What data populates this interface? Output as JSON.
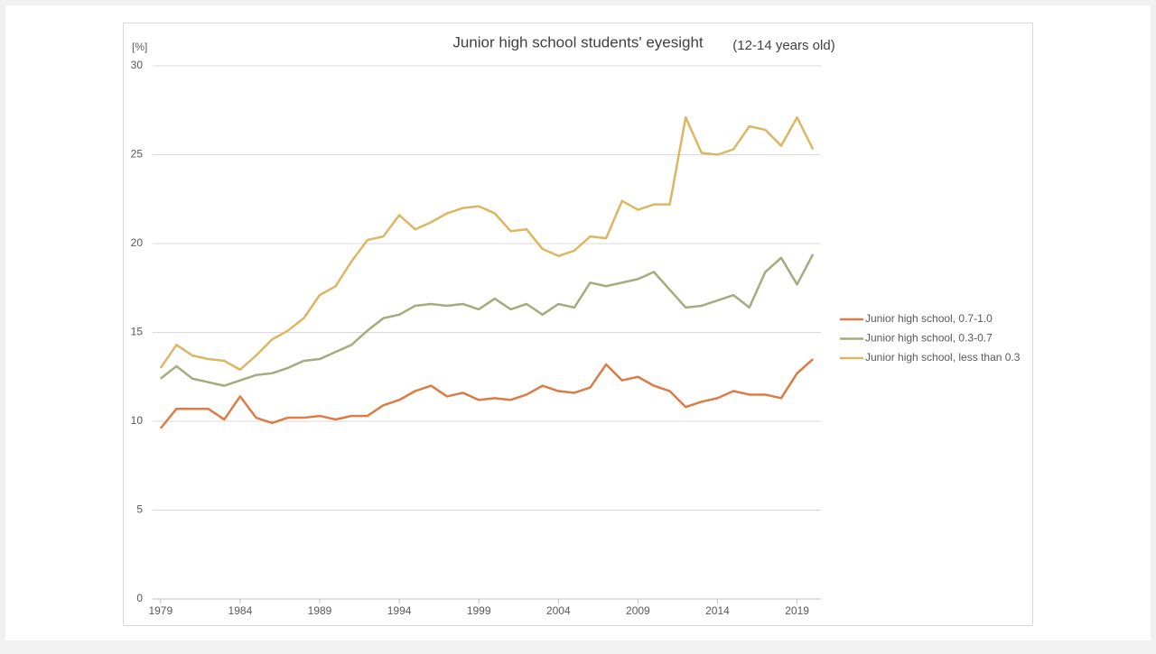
{
  "chart_data": {
    "type": "line",
    "title": "Junior high school students' eyesight",
    "subtitle": "(12-14 years old)",
    "y_label": "[%]",
    "x": [
      1979,
      1980,
      1981,
      1982,
      1983,
      1984,
      1985,
      1986,
      1987,
      1988,
      1989,
      1990,
      1991,
      1992,
      1993,
      1994,
      1995,
      1996,
      1997,
      1998,
      1999,
      2000,
      2001,
      2002,
      2003,
      2004,
      2005,
      2006,
      2007,
      2008,
      2009,
      2010,
      2011,
      2012,
      2013,
      2014,
      2015,
      2016,
      2017,
      2018,
      2019,
      2020
    ],
    "xlim": [
      1978.5,
      2020.5
    ],
    "xticks": [
      1979,
      1984,
      1989,
      1994,
      1999,
      2004,
      2009,
      2014,
      2019
    ],
    "ylim": [
      0,
      30
    ],
    "yticks": [
      0,
      5,
      10,
      15,
      20,
      25,
      30
    ],
    "grid": true,
    "legend": "right",
    "series": [
      {
        "name": "Junior high school, 0.7-1.0",
        "color": "#dd7b45",
        "values": [
          9.6,
          10.7,
          10.7,
          10.7,
          10.1,
          11.4,
          10.2,
          9.9,
          10.2,
          10.2,
          10.3,
          10.1,
          10.3,
          10.3,
          10.9,
          11.2,
          11.7,
          12.0,
          11.4,
          11.6,
          11.2,
          11.3,
          11.2,
          11.5,
          12.0,
          11.7,
          11.6,
          11.9,
          13.2,
          12.3,
          12.5,
          12.0,
          11.7,
          10.8,
          11.1,
          11.3,
          11.7,
          11.5,
          11.5,
          11.3,
          12.7,
          13.5
        ]
      },
      {
        "name": "Junior high school, 0.3-0.7",
        "color": "#a6aa7c",
        "values": [
          12.4,
          13.1,
          12.4,
          12.2,
          12.0,
          12.3,
          12.6,
          12.7,
          13.0,
          13.4,
          13.5,
          13.9,
          14.3,
          15.1,
          15.8,
          16.0,
          16.5,
          16.6,
          16.5,
          16.6,
          16.3,
          16.9,
          16.3,
          16.6,
          16.0,
          16.6,
          16.4,
          17.8,
          17.6,
          17.8,
          18.0,
          18.4,
          17.4,
          16.4,
          16.5,
          16.8,
          17.1,
          16.4,
          18.4,
          19.2,
          17.7,
          19.4
        ]
      },
      {
        "name": "Junior high school, less than 0.3",
        "color": "#dcb662",
        "values": [
          13.0,
          14.3,
          13.7,
          13.5,
          13.4,
          12.9,
          13.7,
          14.6,
          15.1,
          15.8,
          17.1,
          17.6,
          19.0,
          20.2,
          20.4,
          21.6,
          20.8,
          21.2,
          21.7,
          22.0,
          22.1,
          21.7,
          20.7,
          20.8,
          19.7,
          19.3,
          19.6,
          20.4,
          20.3,
          22.4,
          21.9,
          22.2,
          22.2,
          27.1,
          25.1,
          25.0,
          25.3,
          26.6,
          26.4,
          25.5,
          27.1,
          25.3
        ]
      }
    ]
  }
}
